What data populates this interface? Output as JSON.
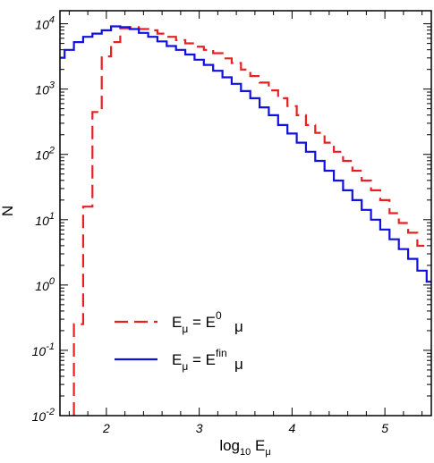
{
  "chart_data": {
    "type": "line",
    "step": true,
    "xlabel": {
      "base": "log",
      "sub": "10",
      "tail": " E",
      "tail_sub": "μ"
    },
    "ylabel": "N",
    "xlim": [
      1.5,
      5.5
    ],
    "ylim": [
      -2,
      4.2
    ],
    "y_scale": "log",
    "grid": false,
    "legend_position": "bottom-left",
    "x_ticks": [
      2,
      3,
      4,
      5
    ],
    "x_tick_labels": [
      "2",
      "3",
      "4",
      "5"
    ],
    "y_ticks": [
      {
        "mantissa": "10",
        "exponent": "-2"
      },
      {
        "mantissa": "10",
        "exponent": "-1"
      },
      {
        "mantissa": "10",
        "exponent": "0"
      },
      {
        "mantissa": "10",
        "exponent": "1"
      },
      {
        "mantissa": "10",
        "exponent": "2"
      },
      {
        "mantissa": "10",
        "exponent": "3"
      },
      {
        "mantissa": "10",
        "exponent": "4"
      }
    ],
    "bin_width": 0.1,
    "series": [
      {
        "legend": {
          "lhs": "E",
          "lhs_sub": "μ",
          "eq": " = ",
          "rhs": "E",
          "rhs_sub": "μ",
          "rhs_sup": "0"
        },
        "color": "#e82020",
        "dash": "dashed",
        "bin_lefts": [
          1.65,
          1.75,
          1.85,
          1.95,
          2.05,
          2.15,
          2.25,
          2.35,
          2.45,
          2.55,
          2.65,
          2.75,
          2.85,
          2.95,
          3.05,
          3.15,
          3.25,
          3.35,
          3.45,
          3.55,
          3.65,
          3.75,
          3.85,
          3.95,
          4.05,
          4.15,
          4.25,
          4.35,
          4.45,
          4.55,
          4.65,
          4.75,
          4.85,
          4.95,
          5.05,
          5.15,
          5.25,
          5.35
        ],
        "log10_values": [
          -0.6,
          1.2,
          2.65,
          3.5,
          3.72,
          3.93,
          3.95,
          3.92,
          3.9,
          3.85,
          3.8,
          3.75,
          3.7,
          3.65,
          3.6,
          3.55,
          3.47,
          3.4,
          3.3,
          3.2,
          3.1,
          2.98,
          2.86,
          2.74,
          2.6,
          2.45,
          2.33,
          2.18,
          2.04,
          1.9,
          1.75,
          1.6,
          1.45,
          1.3,
          1.1,
          0.95,
          0.8,
          0.6
        ]
      },
      {
        "legend": {
          "lhs": "E",
          "lhs_sub": "μ",
          "eq": " = ",
          "rhs": "E",
          "rhs_sub": "μ",
          "rhs_sup": "fin"
        },
        "color": "#1010e0",
        "dash": "solid",
        "bin_lefts": [
          1.45,
          1.55,
          1.65,
          1.75,
          1.85,
          1.95,
          2.05,
          2.15,
          2.25,
          2.35,
          2.45,
          2.55,
          2.65,
          2.75,
          2.85,
          2.95,
          3.05,
          3.15,
          3.25,
          3.35,
          3.45,
          3.55,
          3.65,
          3.75,
          3.85,
          3.95,
          4.05,
          4.15,
          4.25,
          4.35,
          4.45,
          4.55,
          4.65,
          4.75,
          4.85,
          4.95,
          5.05,
          5.15,
          5.25,
          5.35,
          5.45
        ],
        "log10_values": [
          3.48,
          3.6,
          3.72,
          3.8,
          3.85,
          3.9,
          3.96,
          3.95,
          3.92,
          3.86,
          3.8,
          3.73,
          3.66,
          3.6,
          3.53,
          3.45,
          3.37,
          3.28,
          3.18,
          3.08,
          2.97,
          2.86,
          2.72,
          2.6,
          2.45,
          2.32,
          2.18,
          2.04,
          1.9,
          1.75,
          1.6,
          1.45,
          1.3,
          1.15,
          1.0,
          0.85,
          0.7,
          0.55,
          0.4,
          0.22,
          0.05
        ]
      }
    ]
  }
}
